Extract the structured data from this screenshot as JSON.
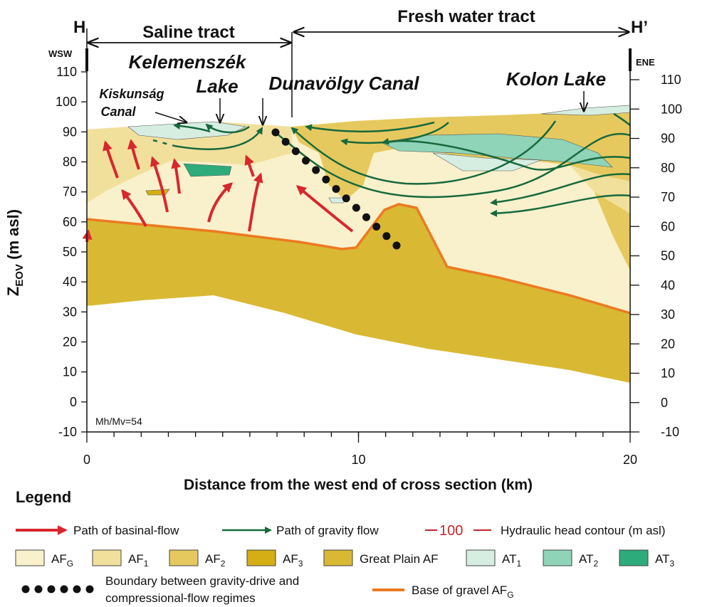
{
  "header": {
    "left_marker": "H",
    "right_marker": "H’",
    "saline_tract": "Saline tract",
    "fresh_water_tract": "Fresh water tract",
    "left_direction": "WSW",
    "right_direction": "ENE"
  },
  "annotations": {
    "kelemenszek_lake": [
      "Kelemenszék",
      "Lake"
    ],
    "kiskunsag_canal": [
      "Kiskunság",
      "Canal"
    ],
    "dunavolgy_canal": "Dunavölgy Canal",
    "kolon_lake": "Kolon Lake",
    "scale_ratio": "Mh/Mv=54"
  },
  "axes": {
    "y_label": {
      "base": "Z",
      "sub": "EOV",
      "rest": " (m asl)"
    },
    "x_label": "Distance from the west end of cross section (km)",
    "left_ticks": [
      110,
      100,
      90,
      80,
      70,
      60,
      50,
      40,
      30,
      20,
      10,
      0,
      -10
    ],
    "right_ticks": [
      110,
      100,
      90,
      80,
      70,
      60,
      50,
      40,
      30,
      20,
      10,
      0,
      -10
    ],
    "x_ticks": [
      0,
      10,
      20
    ]
  },
  "legend": {
    "title": "Legend",
    "basinal_flow": "Path of basinal-flow",
    "gravity_flow": "Path of gravity flow",
    "head_contour_sample": "100",
    "head_contour": "Hydraulic head contour (m asl)",
    "units": [
      {
        "base": "AF",
        "sub": "G",
        "color": "#f9f1cb"
      },
      {
        "base": "AF",
        "sub": "1",
        "color": "#f1e09c"
      },
      {
        "base": "AF",
        "sub": "2",
        "color": "#e6c95e"
      },
      {
        "base": "AF",
        "sub": "3",
        "color": "#d4ae14"
      },
      {
        "base": "Great Plain AF",
        "color": "#d9b934"
      },
      {
        "base": "AT",
        "sub": "1",
        "color": "#d6eee1"
      },
      {
        "base": "AT",
        "sub": "2",
        "color": "#8fd4b9"
      },
      {
        "base": "AT",
        "sub": "3",
        "color": "#2dab7b"
      }
    ],
    "boundary": [
      "Boundary between gravity-drive and",
      "compressional-flow regimes"
    ],
    "base_gravel": {
      "base": "Base of gravel AF",
      "sub": "G"
    }
  }
}
